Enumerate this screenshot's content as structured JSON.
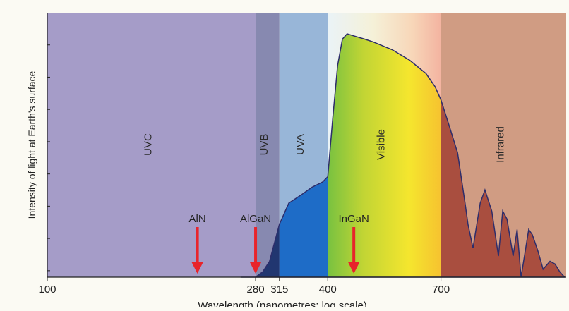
{
  "chart_data": {
    "type": "area",
    "title": "",
    "xlabel": "Wavelength (nanometres; log scale)",
    "ylabel": "Intensity of light at Earth's surface",
    "xscale": "log",
    "xlim": [
      100,
      1300
    ],
    "ylim": [
      0,
      1
    ],
    "grid": false,
    "x_ticks": [
      {
        "value": 100,
        "label": "100"
      },
      {
        "value": 280,
        "label": "280"
      },
      {
        "value": 315,
        "label": "315"
      },
      {
        "value": 400,
        "label": "400"
      },
      {
        "value": 700,
        "label": "700"
      }
    ],
    "bands": [
      {
        "name": "UVC",
        "start": 100,
        "end": 280,
        "color": "#a59cc8"
      },
      {
        "name": "UVB",
        "start": 280,
        "end": 315,
        "color": "#8789b0"
      },
      {
        "name": "UVA",
        "start": 315,
        "end": 400,
        "color": "#98b6d8"
      },
      {
        "name": "Visible",
        "start": 400,
        "end": 700,
        "color": "spectrum"
      },
      {
        "name": "Infrared",
        "start": 700,
        "end": 1300,
        "color": "#d09c83"
      }
    ],
    "annotations": [
      {
        "label": "AlN",
        "wavelength": 210,
        "color": "#e8242b"
      },
      {
        "label": "AlGaN",
        "wavelength": 280,
        "color": "#e8242b"
      },
      {
        "label": "InGaN",
        "wavelength": 455,
        "color": "#e8242b"
      }
    ],
    "series": [
      {
        "x": [
          260,
          280,
          290,
          300,
          315,
          330,
          350,
          370,
          390,
          400,
          410,
          420,
          430,
          440,
          460,
          480,
          500,
          550,
          600,
          650,
          680,
          700,
          730,
          760,
          790,
          800,
          820,
          850,
          870,
          900,
          930,
          950,
          970,
          1000,
          1020,
          1040,
          1060,
          1080,
          1100,
          1130,
          1160,
          1200,
          1230,
          1260,
          1290
        ],
        "y": [
          0,
          0,
          0.02,
          0.06,
          0.2,
          0.28,
          0.31,
          0.34,
          0.36,
          0.38,
          0.6,
          0.8,
          0.9,
          0.92,
          0.91,
          0.9,
          0.89,
          0.86,
          0.82,
          0.77,
          0.72,
          0.67,
          0.57,
          0.47,
          0.27,
          0.2,
          0.11,
          0.28,
          0.33,
          0.25,
          0.08,
          0.25,
          0.22,
          0.08,
          0.18,
          0.0,
          0.09,
          0.18,
          0.16,
          0.1,
          0.03,
          0.06,
          0.05,
          0.02,
          0.0
        ],
        "colors": {
          "fill_uv": "#1e6cc7",
          "fill_uvb": "#213670",
          "fill_ir": "#a94e3f",
          "stroke": "#2d2d6b"
        }
      }
    ]
  }
}
